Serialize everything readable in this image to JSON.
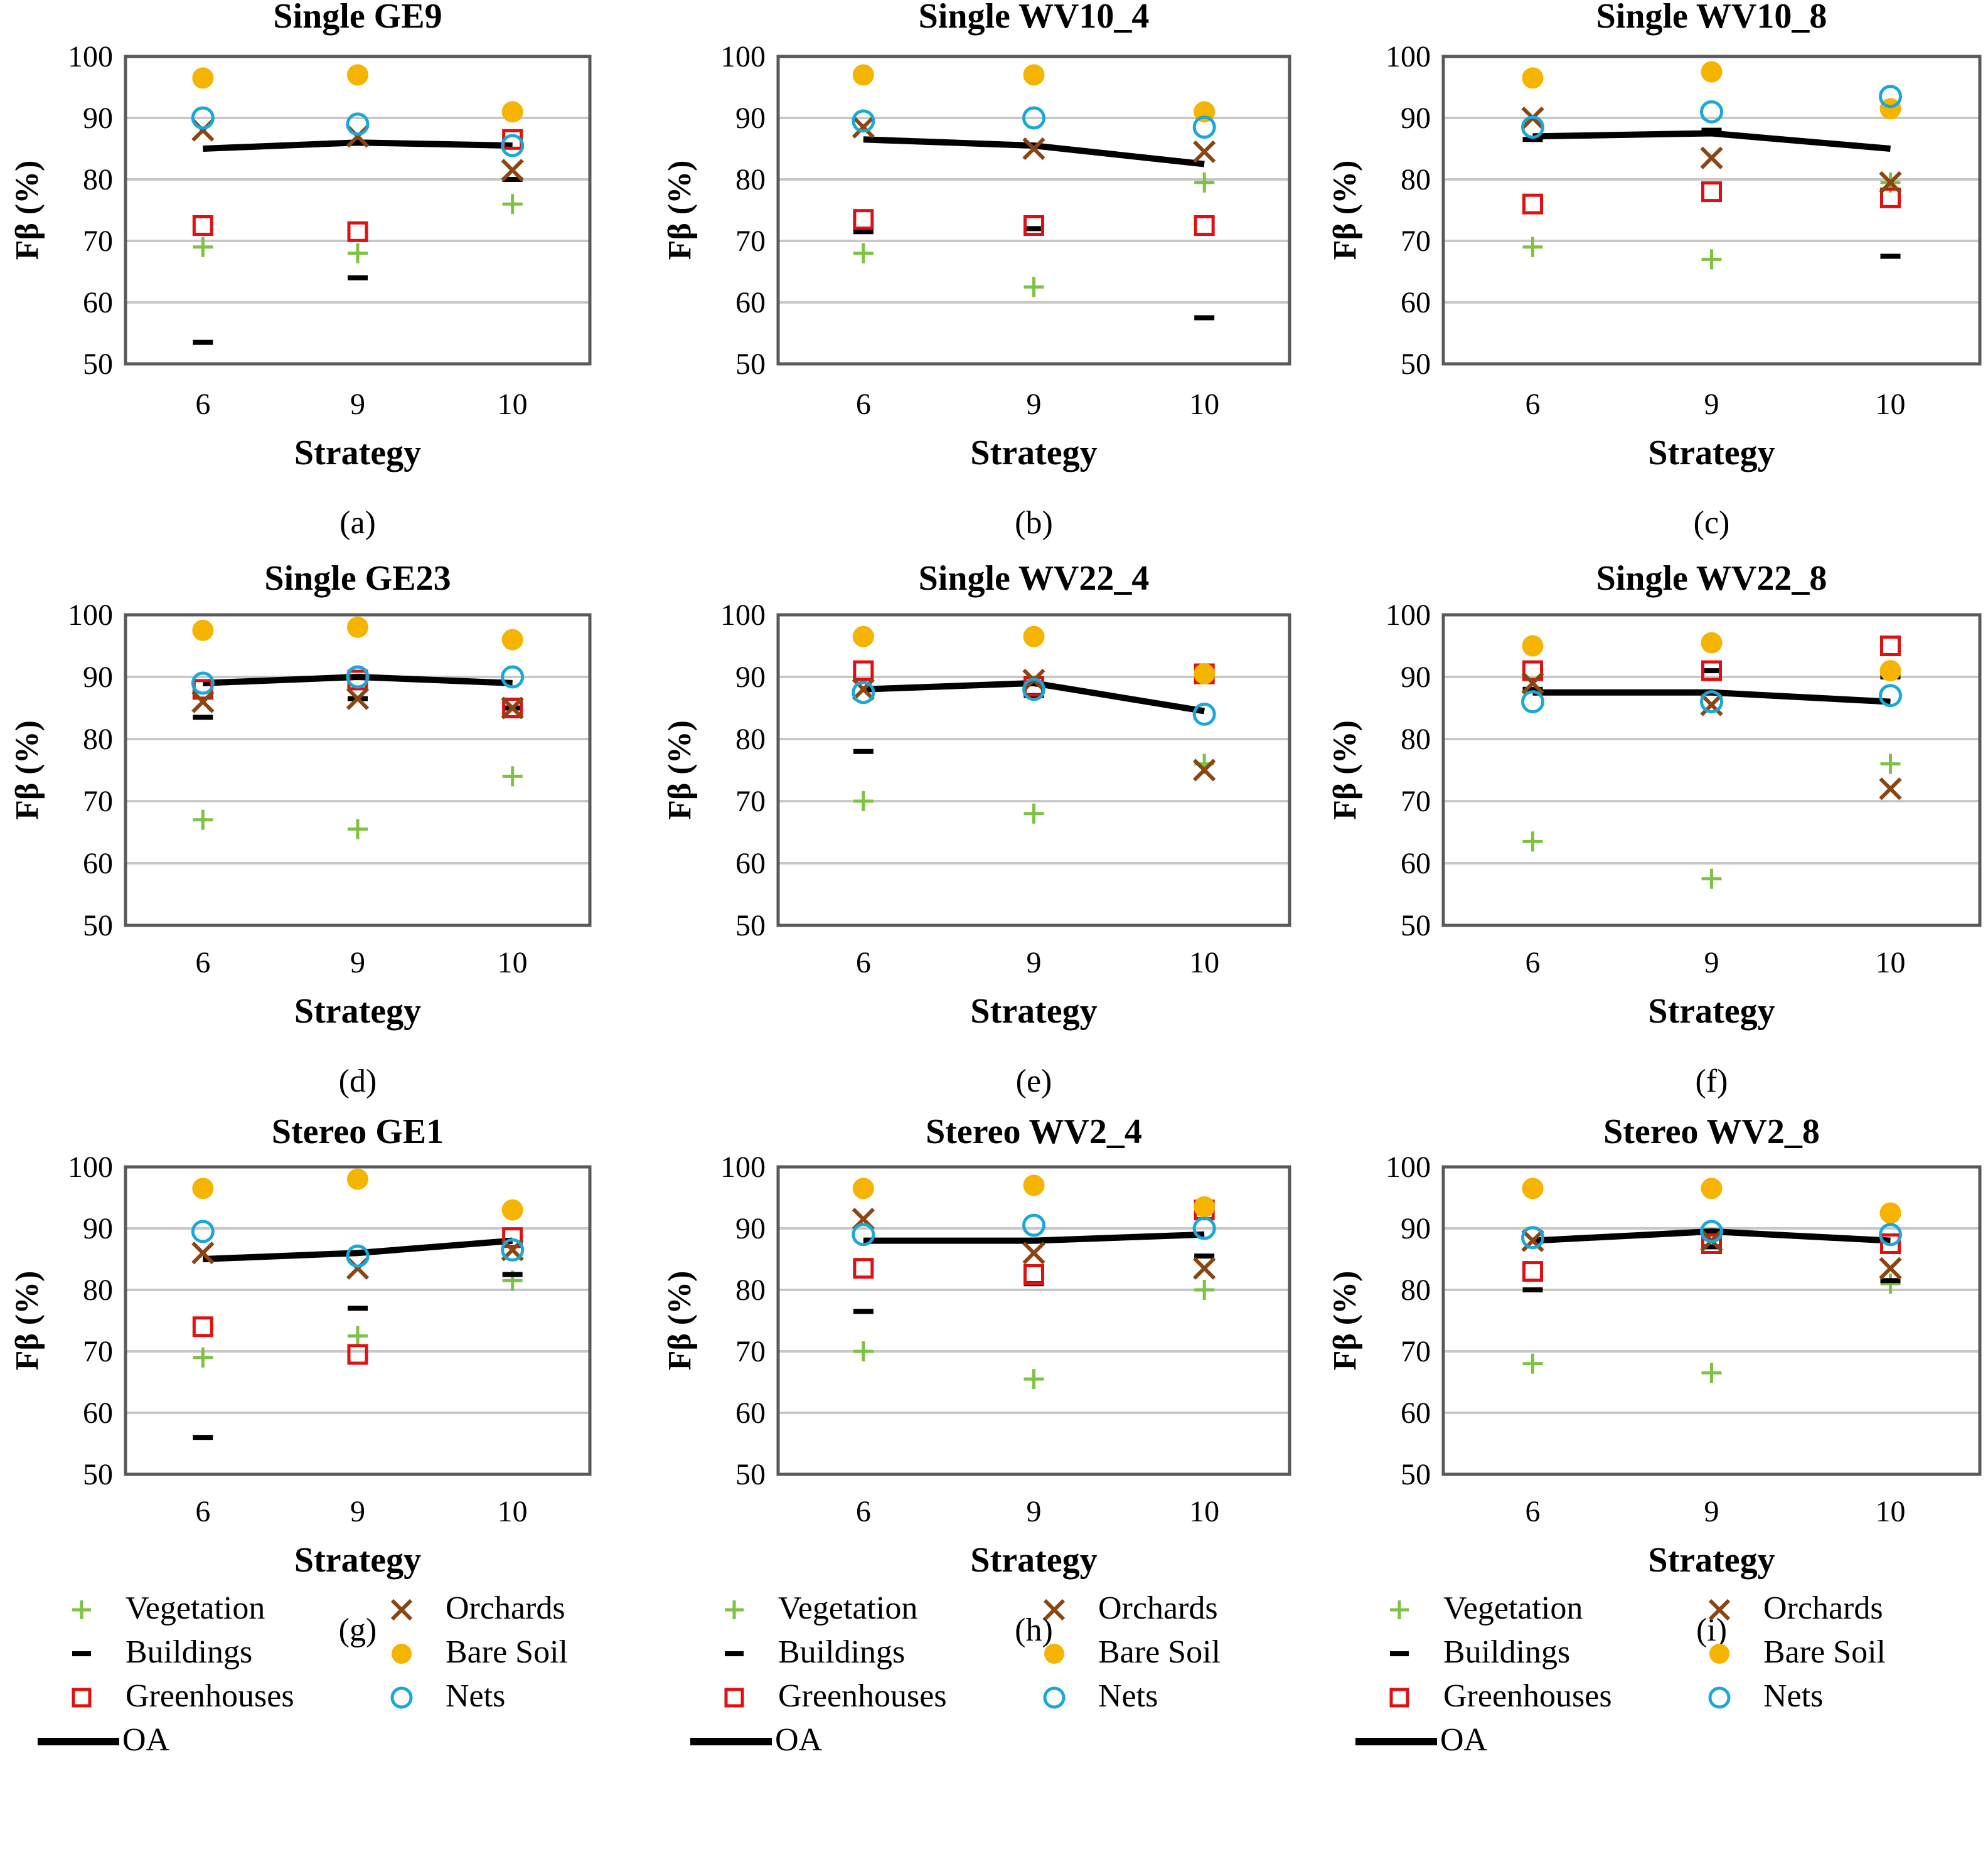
{
  "chart_data": [
    {
      "type": "scatter",
      "title": "Single GE9",
      "caption": "(a)",
      "xlabel": "Strategy",
      "ylabel": "Fβ (%)",
      "categories": [
        "6",
        "9",
        "10"
      ],
      "ylim": [
        50,
        100
      ],
      "yticks": [
        50,
        60,
        70,
        80,
        90,
        100
      ],
      "grid": true,
      "series": [
        {
          "name": "Vegetation",
          "values": [
            69,
            68,
            76
          ]
        },
        {
          "name": "Buildings",
          "values": [
            53.5,
            64,
            80
          ]
        },
        {
          "name": "Greenhouses",
          "values": [
            72.5,
            71.5,
            86.5
          ]
        },
        {
          "name": "Orchards",
          "values": [
            88,
            87,
            81.5
          ]
        },
        {
          "name": "Bare Soil",
          "values": [
            96.5,
            97,
            91
          ]
        },
        {
          "name": "Nets",
          "values": [
            90,
            89,
            85.5
          ]
        },
        {
          "name": "OA",
          "values": [
            85,
            86,
            85.5
          ]
        }
      ]
    },
    {
      "type": "scatter",
      "title": "Single WV10_4",
      "caption": "(b)",
      "xlabel": "Strategy",
      "ylabel": "Fβ (%)",
      "categories": [
        "6",
        "9",
        "10"
      ],
      "ylim": [
        50,
        100
      ],
      "yticks": [
        50,
        60,
        70,
        80,
        90,
        100
      ],
      "grid": true,
      "series": [
        {
          "name": "Vegetation",
          "values": [
            68,
            62.5,
            79.5
          ]
        },
        {
          "name": "Buildings",
          "values": [
            71.5,
            72,
            57.5
          ]
        },
        {
          "name": "Greenhouses",
          "values": [
            73.5,
            72.5,
            72.5
          ]
        },
        {
          "name": "Orchards",
          "values": [
            88.5,
            85,
            84.5
          ]
        },
        {
          "name": "Bare Soil",
          "values": [
            97,
            97,
            91
          ]
        },
        {
          "name": "Nets",
          "values": [
            89.5,
            90,
            88.5
          ]
        },
        {
          "name": "OA",
          "values": [
            86.5,
            85.5,
            82.5
          ]
        }
      ]
    },
    {
      "type": "scatter",
      "title": "Single WV10_8",
      "caption": "(c)",
      "xlabel": "Strategy",
      "ylabel": "Fβ (%)",
      "categories": [
        "6",
        "9",
        "10"
      ],
      "ylim": [
        50,
        100
      ],
      "yticks": [
        50,
        60,
        70,
        80,
        90,
        100
      ],
      "grid": true,
      "series": [
        {
          "name": "Vegetation",
          "values": [
            69,
            67,
            79.5
          ]
        },
        {
          "name": "Buildings",
          "values": [
            86.5,
            88,
            67.5
          ]
        },
        {
          "name": "Greenhouses",
          "values": [
            76,
            78,
            77
          ]
        },
        {
          "name": "Orchards",
          "values": [
            90,
            83.5,
            79.5
          ]
        },
        {
          "name": "Bare Soil",
          "values": [
            96.5,
            97.5,
            91.5
          ]
        },
        {
          "name": "Nets",
          "values": [
            88.5,
            91,
            93.5
          ]
        },
        {
          "name": "OA",
          "values": [
            87,
            87.5,
            85
          ]
        }
      ]
    },
    {
      "type": "scatter",
      "title": "Single GE23",
      "caption": "(d)",
      "xlabel": "Strategy",
      "ylabel": "Fβ (%)",
      "categories": [
        "6",
        "9",
        "10"
      ],
      "ylim": [
        50,
        100
      ],
      "yticks": [
        50,
        60,
        70,
        80,
        90,
        100
      ],
      "grid": true,
      "series": [
        {
          "name": "Vegetation",
          "values": [
            67,
            65.5,
            74
          ]
        },
        {
          "name": "Buildings",
          "values": [
            83.5,
            86.5,
            85
          ]
        },
        {
          "name": "Greenhouses",
          "values": [
            88,
            89.5,
            85
          ]
        },
        {
          "name": "Orchards",
          "values": [
            86,
            86.5,
            85
          ]
        },
        {
          "name": "Bare Soil",
          "values": [
            97.5,
            98,
            96
          ]
        },
        {
          "name": "Nets",
          "values": [
            89,
            90,
            90
          ]
        },
        {
          "name": "OA",
          "values": [
            89,
            90,
            89
          ]
        }
      ]
    },
    {
      "type": "scatter",
      "title": "Single WV22_4",
      "caption": "(e)",
      "xlabel": "Strategy",
      "ylabel": "Fβ (%)",
      "categories": [
        "6",
        "9",
        "10"
      ],
      "ylim": [
        50,
        100
      ],
      "yticks": [
        50,
        60,
        70,
        80,
        90,
        100
      ],
      "grid": true,
      "series": [
        {
          "name": "Vegetation",
          "values": [
            70,
            68,
            76
          ]
        },
        {
          "name": "Buildings",
          "values": [
            78,
            87,
            90
          ]
        },
        {
          "name": "Greenhouses",
          "values": [
            91,
            88.5,
            90.5
          ]
        },
        {
          "name": "Orchards",
          "values": [
            88,
            89.5,
            75
          ]
        },
        {
          "name": "Bare Soil",
          "values": [
            96.5,
            96.5,
            90.5
          ]
        },
        {
          "name": "Nets",
          "values": [
            87.5,
            88,
            84
          ]
        },
        {
          "name": "OA",
          "values": [
            88,
            89,
            84.5
          ]
        }
      ]
    },
    {
      "type": "scatter",
      "title": "Single WV22_8",
      "caption": "(f)",
      "xlabel": "Strategy",
      "ylabel": "Fβ (%)",
      "categories": [
        "6",
        "9",
        "10"
      ],
      "ylim": [
        50,
        100
      ],
      "yticks": [
        50,
        60,
        70,
        80,
        90,
        100
      ],
      "grid": true,
      "series": [
        {
          "name": "Vegetation",
          "values": [
            63.5,
            57.5,
            76
          ]
        },
        {
          "name": "Buildings",
          "values": [
            88,
            91,
            90
          ]
        },
        {
          "name": "Greenhouses",
          "values": [
            91,
            91,
            95
          ]
        },
        {
          "name": "Orchards",
          "values": [
            89,
            85.5,
            72
          ]
        },
        {
          "name": "Bare Soil",
          "values": [
            95,
            95.5,
            91
          ]
        },
        {
          "name": "Nets",
          "values": [
            86,
            86,
            87
          ]
        },
        {
          "name": "OA",
          "values": [
            87.5,
            87.5,
            86
          ]
        }
      ]
    },
    {
      "type": "scatter",
      "title": "Stereo GE1",
      "caption": "(g)",
      "xlabel": "Strategy",
      "ylabel": "Fβ (%)",
      "categories": [
        "6",
        "9",
        "10"
      ],
      "ylim": [
        50,
        100
      ],
      "yticks": [
        50,
        60,
        70,
        80,
        90,
        100
      ],
      "grid": true,
      "series": [
        {
          "name": "Vegetation",
          "values": [
            69,
            72.5,
            81.5
          ]
        },
        {
          "name": "Buildings",
          "values": [
            56,
            77,
            82.5
          ]
        },
        {
          "name": "Greenhouses",
          "values": [
            74,
            69.5,
            88.5
          ]
        },
        {
          "name": "Orchards",
          "values": [
            86,
            83.5,
            86.5
          ]
        },
        {
          "name": "Bare Soil",
          "values": [
            96.5,
            98,
            93
          ]
        },
        {
          "name": "Nets",
          "values": [
            89.5,
            85.5,
            86.5
          ]
        },
        {
          "name": "OA",
          "values": [
            85,
            86,
            88
          ]
        }
      ]
    },
    {
      "type": "scatter",
      "title": "Stereo WV2_4",
      "caption": "(h)",
      "xlabel": "Strategy",
      "ylabel": "Fβ (%)",
      "categories": [
        "6",
        "9",
        "10"
      ],
      "ylim": [
        50,
        100
      ],
      "yticks": [
        50,
        60,
        70,
        80,
        90,
        100
      ],
      "grid": true,
      "series": [
        {
          "name": "Vegetation",
          "values": [
            70,
            65.5,
            80
          ]
        },
        {
          "name": "Buildings",
          "values": [
            76.5,
            81,
            85.5
          ]
        },
        {
          "name": "Greenhouses",
          "values": [
            83.5,
            82.5,
            93
          ]
        },
        {
          "name": "Orchards",
          "values": [
            91.5,
            86,
            83.5
          ]
        },
        {
          "name": "Bare Soil",
          "values": [
            96.5,
            97,
            93.5
          ]
        },
        {
          "name": "Nets",
          "values": [
            89,
            90.5,
            90
          ]
        },
        {
          "name": "OA",
          "values": [
            88,
            88,
            89
          ]
        }
      ]
    },
    {
      "type": "scatter",
      "title": "Stereo WV2_8",
      "caption": "(i)",
      "xlabel": "Strategy",
      "ylabel": "Fβ (%)",
      "categories": [
        "6",
        "9",
        "10"
      ],
      "ylim": [
        50,
        100
      ],
      "yticks": [
        50,
        60,
        70,
        80,
        90,
        100
      ],
      "grid": true,
      "series": [
        {
          "name": "Vegetation",
          "values": [
            68,
            66.5,
            81
          ]
        },
        {
          "name": "Buildings",
          "values": [
            80,
            87,
            81.5
          ]
        },
        {
          "name": "Greenhouses",
          "values": [
            83,
            87.5,
            87.5
          ]
        },
        {
          "name": "Orchards",
          "values": [
            88,
            88,
            83.5
          ]
        },
        {
          "name": "Bare Soil",
          "values": [
            96.5,
            96.5,
            92.5
          ]
        },
        {
          "name": "Nets",
          "values": [
            88.5,
            89.5,
            89
          ]
        },
        {
          "name": "OA",
          "values": [
            88,
            89.5,
            88
          ]
        }
      ]
    }
  ],
  "legend": {
    "items": [
      {
        "name": "Vegetation",
        "marker": "plus",
        "color": "#7dc242"
      },
      {
        "name": "Orchards",
        "marker": "x",
        "color": "#8b4513"
      },
      {
        "name": "Buildings",
        "marker": "dash",
        "color": "#000000"
      },
      {
        "name": "Bare Soil",
        "marker": "dot",
        "color": "#f5b400"
      },
      {
        "name": "Greenhouses",
        "marker": "square",
        "color": "#e01010"
      },
      {
        "name": "Nets",
        "marker": "circle",
        "color": "#1aa7d9"
      },
      {
        "name": "OA",
        "marker": "line",
        "color": "#000000"
      }
    ]
  },
  "colors": {
    "grid": "#c8c8c8",
    "frame": "#595959",
    "oa_line": "#000000"
  }
}
